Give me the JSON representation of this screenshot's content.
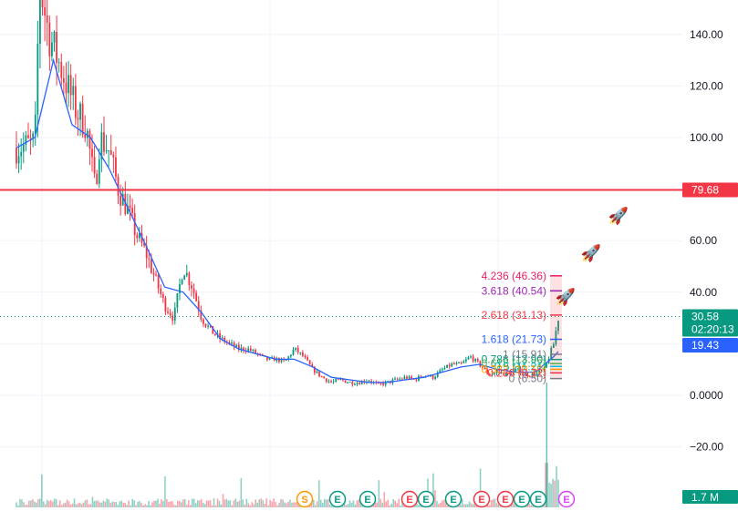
{
  "chart_data": {
    "type": "candlestick",
    "y_axis": {
      "ticks": [
        {
          "value": 140,
          "label": "140.00"
        },
        {
          "value": 120,
          "label": "120.00"
        },
        {
          "value": 100,
          "label": "100.00"
        },
        {
          "value": 60,
          "label": "60.00"
        },
        {
          "value": 40,
          "label": "40.00"
        },
        {
          "value": 0,
          "label": "0.0000"
        },
        {
          "value": -20,
          "label": "−20.00"
        }
      ],
      "ylim": [
        -40,
        155
      ]
    },
    "grid": true,
    "price_series": [
      [
        0,
        96
      ],
      [
        2,
        97
      ],
      [
        4,
        98
      ],
      [
        5,
        160
      ],
      [
        7,
        140
      ],
      [
        9,
        130
      ],
      [
        11,
        120
      ],
      [
        13,
        110
      ],
      [
        15,
        105
      ],
      [
        17,
        80
      ],
      [
        18,
        100
      ],
      [
        20,
        95
      ],
      [
        22,
        80
      ],
      [
        24,
        72
      ],
      [
        26,
        62
      ],
      [
        28,
        55
      ],
      [
        30,
        45
      ],
      [
        32,
        35
      ],
      [
        34,
        30
      ],
      [
        35,
        40
      ],
      [
        36,
        50
      ],
      [
        38,
        42
      ],
      [
        40,
        30
      ],
      [
        42,
        25
      ],
      [
        44,
        22
      ],
      [
        46,
        20
      ],
      [
        48,
        18
      ],
      [
        50,
        18
      ],
      [
        52,
        16
      ],
      [
        54,
        14
      ],
      [
        56,
        14
      ],
      [
        58,
        13
      ],
      [
        60,
        18
      ],
      [
        62,
        15
      ],
      [
        64,
        10
      ],
      [
        66,
        7
      ],
      [
        68,
        5
      ],
      [
        70,
        6
      ],
      [
        72,
        5
      ],
      [
        74,
        5
      ],
      [
        76,
        6
      ],
      [
        78,
        4
      ],
      [
        80,
        5
      ],
      [
        82,
        6
      ],
      [
        84,
        7
      ],
      [
        86,
        6
      ],
      [
        88,
        8
      ],
      [
        90,
        7
      ],
      [
        92,
        10
      ],
      [
        94,
        12
      ],
      [
        96,
        12
      ],
      [
        98,
        15
      ],
      [
        100,
        12
      ],
      [
        102,
        8
      ],
      [
        104,
        9
      ],
      [
        106,
        8
      ],
      [
        108,
        10
      ],
      [
        110,
        8
      ],
      [
        112,
        8
      ],
      [
        114,
        10
      ],
      [
        116,
        20
      ],
      [
        117,
        30
      ]
    ],
    "moving_average": [
      [
        0,
        96
      ],
      [
        4,
        100
      ],
      [
        8,
        130
      ],
      [
        12,
        105
      ],
      [
        16,
        100
      ],
      [
        20,
        88
      ],
      [
        24,
        73
      ],
      [
        28,
        58
      ],
      [
        32,
        42
      ],
      [
        36,
        40
      ],
      [
        40,
        32
      ],
      [
        44,
        22
      ],
      [
        48,
        18
      ],
      [
        52,
        16
      ],
      [
        56,
        14
      ],
      [
        60,
        14
      ],
      [
        64,
        11
      ],
      [
        68,
        7
      ],
      [
        72,
        6
      ],
      [
        76,
        5
      ],
      [
        80,
        5
      ],
      [
        84,
        6
      ],
      [
        88,
        7
      ],
      [
        92,
        9
      ],
      [
        96,
        11
      ],
      [
        100,
        12
      ],
      [
        104,
        10
      ],
      [
        108,
        9
      ],
      [
        112,
        9
      ],
      [
        116,
        15
      ],
      [
        117,
        17
      ]
    ],
    "resistance_line": {
      "value": 79.68,
      "label": "79.68"
    },
    "current_price": {
      "value": 30.58,
      "label": "30.58",
      "countdown": "02:20:13"
    },
    "ma_value": {
      "value": 19.43,
      "label": "19.43"
    },
    "volume_label": "1.7 M",
    "fib_levels": [
      {
        "label": "4.236 (46.36)",
        "value": 46.36,
        "color": "#e91e63"
      },
      {
        "label": "3.618 (40.54)",
        "value": 40.54,
        "color": "#9c27b0"
      },
      {
        "label": "2.618 (31.13)",
        "value": 31.13,
        "color": "#f23645"
      },
      {
        "label": "1.618 (21.73)",
        "value": 21.73,
        "color": "#2962ff"
      },
      {
        "label": "1 (15.91)",
        "value": 15.91,
        "color": "#787b86"
      },
      {
        "label": "0.786 (13.90)",
        "value": 13.9,
        "color": "#089981"
      },
      {
        "label": "0.618 (12.32)",
        "value": 12.32,
        "color": "#4caf50"
      },
      {
        "label": "0.5 (11.21)",
        "value": 11.21,
        "color": "#00bcd4"
      },
      {
        "label": "0.382 (10.10)",
        "value": 10.1,
        "color": "#ff9800"
      },
      {
        "label": "0.236 (8.72)",
        "value": 8.72,
        "color": "#f23645"
      },
      {
        "label": "0 (6.50)",
        "value": 6.5,
        "color": "#787b86"
      }
    ],
    "events": [
      {
        "letter": "S",
        "color": "#ff9800"
      },
      {
        "letter": "E",
        "color": "#089981"
      },
      {
        "letter": "E",
        "color": "#089981"
      },
      {
        "letter": "E",
        "color": "#f23645"
      },
      {
        "letter": "E",
        "color": "#089981"
      },
      {
        "letter": "E",
        "color": "#089981"
      },
      {
        "letter": "E",
        "color": "#f23645"
      },
      {
        "letter": "E",
        "color": "#f23645"
      },
      {
        "letter": "E",
        "color": "#089981"
      },
      {
        "letter": "E",
        "color": "#089981"
      },
      {
        "letter": "E",
        "color": "#e040fb"
      }
    ],
    "colors": {
      "up": "#089981",
      "down": "#f23645",
      "ma": "#2962ff",
      "grid": "#f0f3fa",
      "resistance": "#f23645",
      "price_badge": "#089981",
      "ma_badge": "#2962ff"
    },
    "emoji_annotations": [
      "🚀",
      "🚀",
      "🚀"
    ]
  }
}
